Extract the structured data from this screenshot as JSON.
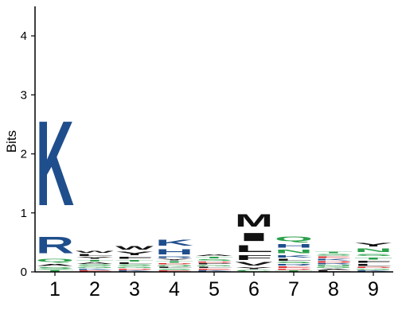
{
  "chart_data": {
    "type": "sequence-logo",
    "ylabel": "Bits",
    "ylim": [
      0,
      4.5
    ],
    "y_ticks": [
      0,
      1,
      2,
      3,
      4
    ],
    "positions": [
      "1",
      "2",
      "3",
      "4",
      "5",
      "6",
      "7",
      "8",
      "9"
    ],
    "letter_colors": {
      "K": "#1f4e8c",
      "R": "#1f4e8c",
      "H": "#1f4e8c",
      "W": "#111111",
      "M": "#111111",
      "I": "#111111",
      "L": "#111111",
      "F": "#111111",
      "Y": "#111111",
      "V": "#111111",
      "A": "#111111",
      "P": "#111111",
      "Q": "#2aa04a",
      "N": "#2aa04a",
      "S": "#2aa04a",
      "T": "#2aa04a",
      "G": "#2aa04a",
      "C": "#2aa04a",
      "D": "#d62728",
      "E": "#d62728"
    },
    "stacks": [
      {
        "position": "1",
        "letters": [
          {
            "letter": "K",
            "bits": 2.3
          },
          {
            "letter": "R",
            "bits": 0.45
          },
          {
            "letter": "Q",
            "bits": 0.08
          },
          {
            "letter": "A",
            "bits": 0.06
          },
          {
            "letter": "S",
            "bits": 0.05
          },
          {
            "letter": "T",
            "bits": 0.04
          }
        ]
      },
      {
        "position": "2",
        "letters": [
          {
            "letter": "W",
            "bits": 0.06
          },
          {
            "letter": "Y",
            "bits": 0.05
          },
          {
            "letter": "L",
            "bits": 0.05
          },
          {
            "letter": "S",
            "bits": 0.04
          },
          {
            "letter": "A",
            "bits": 0.04
          },
          {
            "letter": "T",
            "bits": 0.04
          },
          {
            "letter": "E",
            "bits": 0.03
          },
          {
            "letter": "K",
            "bits": 0.03
          },
          {
            "letter": "G",
            "bits": 0.03
          }
        ]
      },
      {
        "position": "3",
        "letters": [
          {
            "letter": "Y",
            "bits": 0.1
          },
          {
            "letter": "W",
            "bits": 0.1
          },
          {
            "letter": "F",
            "bits": 0.05
          },
          {
            "letter": "S",
            "bits": 0.04
          },
          {
            "letter": "L",
            "bits": 0.04
          },
          {
            "letter": "T",
            "bits": 0.04
          },
          {
            "letter": "K",
            "bits": 0.03
          },
          {
            "letter": "D",
            "bits": 0.03
          },
          {
            "letter": "G",
            "bits": 0.03
          }
        ]
      },
      {
        "position": "4",
        "letters": [
          {
            "letter": "K",
            "bits": 0.16
          },
          {
            "letter": "H",
            "bits": 0.14
          },
          {
            "letter": "T",
            "bits": 0.04
          },
          {
            "letter": "Y",
            "bits": 0.04
          },
          {
            "letter": "R",
            "bits": 0.04
          },
          {
            "letter": "E",
            "bits": 0.03
          },
          {
            "letter": "S",
            "bits": 0.03
          },
          {
            "letter": "L",
            "bits": 0.03
          },
          {
            "letter": "Q",
            "bits": 0.03
          },
          {
            "letter": "D",
            "bits": 0.03
          }
        ]
      },
      {
        "position": "5",
        "letters": [
          {
            "letter": "S",
            "bits": 0.04
          },
          {
            "letter": "T",
            "bits": 0.04
          },
          {
            "letter": "A",
            "bits": 0.04
          },
          {
            "letter": "K",
            "bits": 0.03
          },
          {
            "letter": "E",
            "bits": 0.03
          },
          {
            "letter": "L",
            "bits": 0.03
          },
          {
            "letter": "G",
            "bits": 0.03
          },
          {
            "letter": "P",
            "bits": 0.03
          },
          {
            "letter": "D",
            "bits": 0.03
          }
        ]
      },
      {
        "position": "6",
        "letters": [
          {
            "letter": "M",
            "bits": 0.33
          },
          {
            "letter": "I",
            "bits": 0.22
          },
          {
            "letter": "L",
            "bits": 0.18
          },
          {
            "letter": "F",
            "bits": 0.12
          },
          {
            "letter": "V",
            "bits": 0.09
          },
          {
            "letter": "Y",
            "bits": 0.05
          },
          {
            "letter": "C",
            "bits": 0.04
          }
        ]
      },
      {
        "position": "7",
        "letters": [
          {
            "letter": "Q",
            "bits": 0.13
          },
          {
            "letter": "H",
            "bits": 0.1
          },
          {
            "letter": "N",
            "bits": 0.09
          },
          {
            "letter": "K",
            "bits": 0.07
          },
          {
            "letter": "L",
            "bits": 0.05
          },
          {
            "letter": "E",
            "bits": 0.04
          },
          {
            "letter": "R",
            "bits": 0.04
          },
          {
            "letter": "S",
            "bits": 0.04
          },
          {
            "letter": "T",
            "bits": 0.03
          },
          {
            "letter": "D",
            "bits": 0.03
          }
        ]
      },
      {
        "position": "8",
        "letters": [
          {
            "letter": "D",
            "bits": 0.04
          },
          {
            "letter": "K",
            "bits": 0.04
          },
          {
            "letter": "E",
            "bits": 0.04
          },
          {
            "letter": "S",
            "bits": 0.04
          },
          {
            "letter": "T",
            "bits": 0.04
          },
          {
            "letter": "L",
            "bits": 0.03
          },
          {
            "letter": "A",
            "bits": 0.03
          },
          {
            "letter": "G",
            "bits": 0.03
          },
          {
            "letter": "N",
            "bits": 0.03
          },
          {
            "letter": "R",
            "bits": 0.03
          }
        ]
      },
      {
        "position": "9",
        "letters": [
          {
            "letter": "Y",
            "bits": 0.1
          },
          {
            "letter": "F",
            "bits": 0.06
          },
          {
            "letter": "N",
            "bits": 0.09
          },
          {
            "letter": "T",
            "bits": 0.06
          },
          {
            "letter": "S",
            "bits": 0.06
          },
          {
            "letter": "L",
            "bits": 0.05
          },
          {
            "letter": "K",
            "bits": 0.03
          },
          {
            "letter": "G",
            "bits": 0.03
          },
          {
            "letter": "D",
            "bits": 0.03
          }
        ]
      }
    ]
  }
}
